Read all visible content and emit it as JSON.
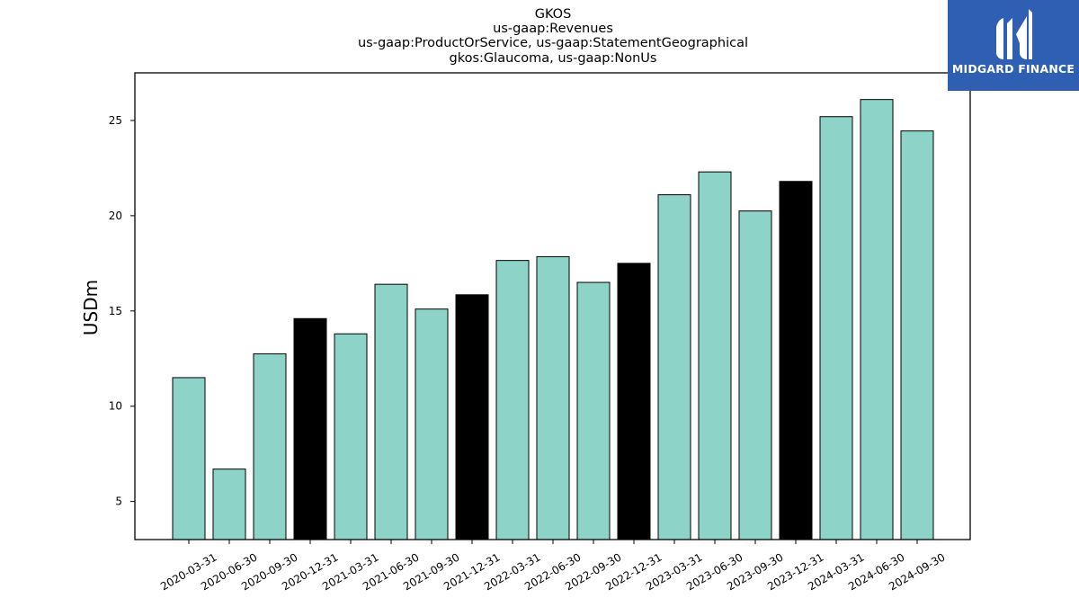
{
  "chart_data": {
    "type": "bar",
    "title_lines": [
      "GKOS",
      "us-gaap:Revenues",
      "us-gaap:ProductOrService, us-gaap:StatementGeographical",
      "gkos:Glaucoma, us-gaap:NonUs"
    ],
    "ylabel": "USDm",
    "xlabel": "",
    "ylim": [
      3,
      27.5
    ],
    "yticks": [
      5,
      10,
      15,
      20,
      25
    ],
    "categories": [
      "2020-03-31",
      "2020-06-30",
      "2020-09-30",
      "2020-12-31",
      "2021-03-31",
      "2021-06-30",
      "2021-09-30",
      "2021-12-31",
      "2022-03-31",
      "2022-06-30",
      "2022-09-30",
      "2022-12-31",
      "2023-03-31",
      "2023-06-30",
      "2023-09-30",
      "2023-12-31",
      "2024-03-31",
      "2024-06-30",
      "2024-09-30"
    ],
    "values": [
      11.5,
      6.7,
      12.75,
      14.6,
      13.8,
      16.4,
      15.1,
      15.85,
      17.65,
      17.85,
      16.5,
      17.5,
      21.1,
      22.3,
      20.25,
      21.8,
      25.2,
      26.1,
      24.45
    ],
    "bar_colors_by_quarter": {
      "Q4": "#000000",
      "other": "#8dd3c7"
    },
    "edge_color": "#000000",
    "grid": false
  },
  "logo": {
    "text": "MIDGARD FINANCE",
    "background": "#2f5fb3",
    "foreground": "#ffffff"
  }
}
